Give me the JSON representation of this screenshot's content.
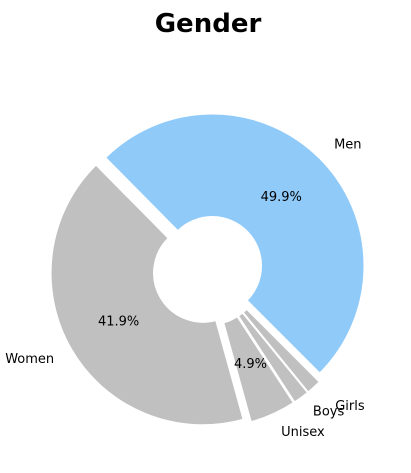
{
  "chart_data": {
    "type": "pie",
    "donut": true,
    "title": "Gender",
    "slices": [
      {
        "label": "Men",
        "value": 49.9,
        "pct_label": "49.9%",
        "color": "#90caf9"
      },
      {
        "label": "Women",
        "value": 41.9,
        "pct_label": "41.9%",
        "color": "#c0c0c0"
      },
      {
        "label": "Unisex",
        "value": 4.9,
        "pct_label": "4.9%",
        "color": "#c0c0c0"
      },
      {
        "label": "Boys",
        "value": 1.7,
        "pct_label": "",
        "color": "#c0c0c0"
      },
      {
        "label": "Girls",
        "value": 1.6,
        "pct_label": "",
        "color": "#c0c0c0"
      }
    ],
    "legend": "none"
  }
}
